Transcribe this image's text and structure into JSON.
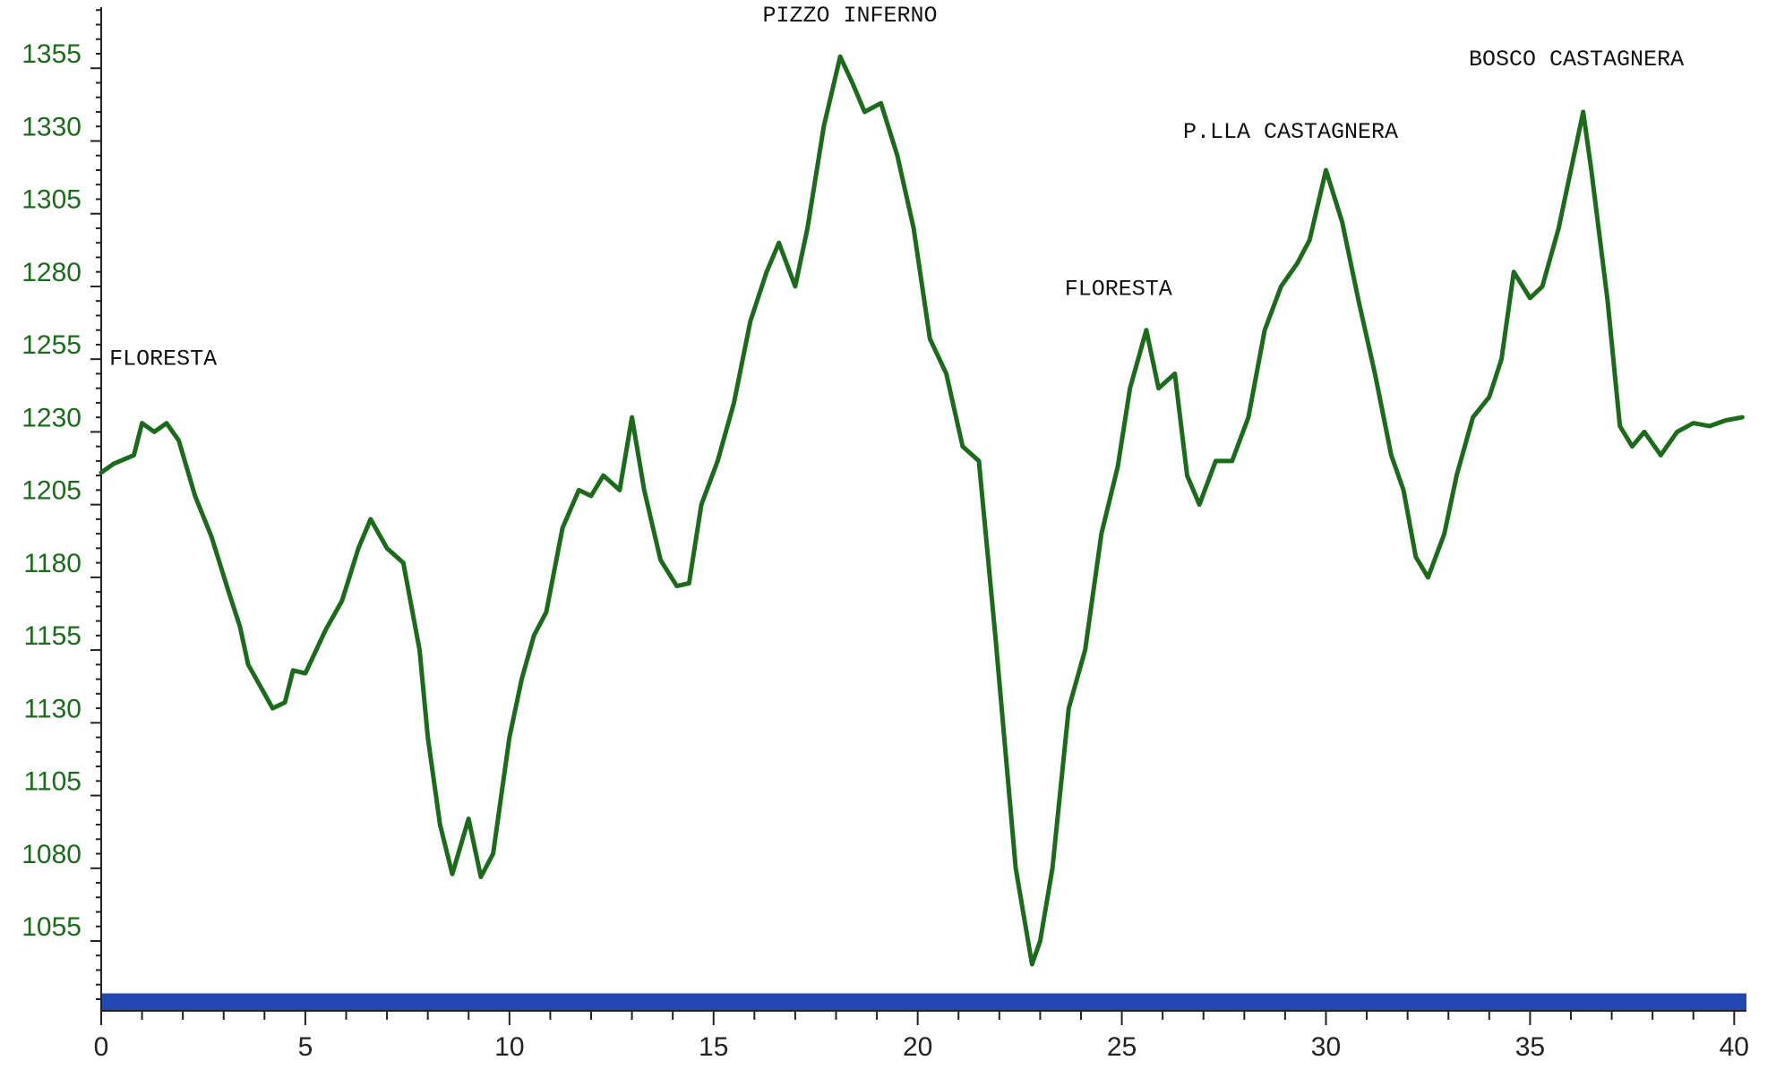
{
  "chart_data": {
    "type": "line",
    "title": "",
    "xlabel": "",
    "ylabel": "",
    "xlim": [
      0,
      40.3
    ],
    "ylim": [
      1031,
      1376
    ],
    "x_ticks": [
      0,
      5,
      10,
      15,
      20,
      25,
      30,
      35,
      40
    ],
    "y_ticks": [
      1055,
      1080,
      1105,
      1130,
      1155,
      1180,
      1205,
      1230,
      1255,
      1280,
      1305,
      1330,
      1355
    ],
    "y_minor_step": 5,
    "x_minor_step": 1,
    "grid": false,
    "legend": "none",
    "colors": {
      "line": "#1a6b1a",
      "ytick_label": "#1a6b1a",
      "baseline_band": "#2448b3",
      "axis": "#222222"
    },
    "series": [
      {
        "x": [
          0,
          0.3,
          0.8,
          1.0,
          1.3,
          1.6,
          1.9,
          2.3,
          2.7,
          3.1,
          3.4,
          3.6,
          4.0,
          4.2,
          4.5,
          4.7,
          5.0,
          5.5,
          5.9,
          6.3,
          6.6,
          7.0,
          7.4,
          7.8,
          8.0,
          8.3,
          8.6,
          9.0,
          9.3,
          9.6,
          10.0,
          10.3,
          10.6,
          10.9,
          11.3,
          11.7,
          12.0,
          12.3,
          12.7,
          13.0,
          13.3,
          13.7,
          14.1,
          14.4,
          14.7,
          15.1,
          15.5,
          15.9,
          16.3,
          16.6,
          17.0,
          17.3,
          17.7,
          18.1,
          18.4,
          18.7,
          19.1,
          19.5,
          19.9,
          20.3,
          20.7,
          21.1,
          21.5,
          21.9,
          22.4,
          22.8,
          23.0,
          23.3,
          23.7,
          24.1,
          24.5,
          24.9,
          25.2,
          25.6,
          25.9,
          26.3,
          26.6,
          26.9,
          27.3,
          27.7,
          28.1,
          28.5,
          28.9,
          29.3,
          29.6,
          30.0,
          30.4,
          30.8,
          31.2,
          31.6,
          31.9,
          32.2,
          32.5,
          32.9,
          33.2,
          33.6,
          34.0,
          34.3,
          34.6,
          35.0,
          35.3,
          35.7,
          36.0,
          36.3,
          36.5,
          36.9,
          37.2,
          37.5,
          37.8,
          38.2,
          38.6,
          39.0,
          39.4,
          39.8,
          40.2
        ],
        "values": [
          1216,
          1219,
          1222,
          1233,
          1230,
          1233,
          1227,
          1208,
          1194,
          1176,
          1163,
          1150,
          1140,
          1135,
          1137,
          1148,
          1147,
          1162,
          1172,
          1190,
          1200,
          1190,
          1185,
          1155,
          1125,
          1095,
          1078,
          1097,
          1077,
          1085,
          1125,
          1145,
          1160,
          1168,
          1197,
          1210,
          1208,
          1215,
          1210,
          1235,
          1210,
          1186,
          1177,
          1178,
          1205,
          1220,
          1240,
          1268,
          1285,
          1295,
          1280,
          1300,
          1335,
          1359,
          1350,
          1340,
          1343,
          1325,
          1300,
          1262,
          1250,
          1225,
          1220,
          1160,
          1080,
          1047,
          1055,
          1080,
          1135,
          1155,
          1195,
          1218,
          1245,
          1265,
          1245,
          1250,
          1215,
          1205,
          1220,
          1220,
          1235,
          1265,
          1280,
          1288,
          1296,
          1320,
          1302,
          1275,
          1250,
          1222,
          1210,
          1187,
          1180,
          1195,
          1215,
          1235,
          1242,
          1255,
          1285,
          1276,
          1280,
          1300,
          1320,
          1340,
          1320,
          1275,
          1232,
          1225,
          1230,
          1222,
          1230,
          1233,
          1232,
          1234,
          1235
        ]
      }
    ],
    "annotations": [
      {
        "text": "FLORESTA",
        "x": 0.2,
        "y": 1253
      },
      {
        "text": "PIZZO INFERNO",
        "x": 16.2,
        "y": 1371
      },
      {
        "text": "FLORESTA",
        "x": 23.6,
        "y": 1277
      },
      {
        "text": "P.LLA CASTAGNERA",
        "x": 26.5,
        "y": 1331
      },
      {
        "text": "BOSCO CASTAGNERA",
        "x": 33.5,
        "y": 1356
      }
    ],
    "baseline_band": {
      "from": 1031,
      "to": 1037
    }
  }
}
